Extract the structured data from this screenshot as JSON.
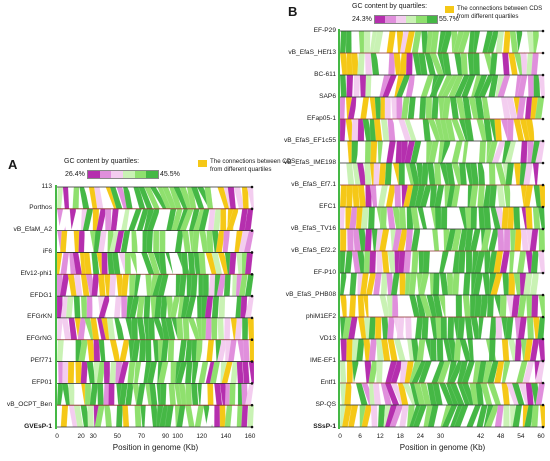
{
  "panels": [
    {
      "letter": "A",
      "legend": {
        "gc_title": "GC content by quartiles:",
        "gc_low": "26.4%",
        "gc_high": "45.5%",
        "connections": "The connections between CDS from different quartiles"
      },
      "genomes": [
        "113",
        "Porthos",
        "vB_EfaM_A2",
        "iF6",
        "Efv12-phi1",
        "EFDG1",
        "EFGrKN",
        "EFGrNG",
        "PEf771",
        "EFP01",
        "vB_OCPT_Ben",
        "GVEsP-1"
      ],
      "ticks": [
        "0",
        "20",
        "30",
        "50",
        "70",
        "90",
        "100",
        "120",
        "140",
        "160"
      ],
      "tick_values": [
        0,
        20,
        30,
        50,
        70,
        90,
        100,
        120,
        140,
        160
      ],
      "axis_title": "Position in genome (Kb)"
    },
    {
      "letter": "B",
      "legend": {
        "gc_title": "GC content by quartiles:",
        "gc_low": "24.3%",
        "gc_high": "55.7%",
        "connections": "The connections between CDS from different quartiles"
      },
      "genomes": [
        "EF-P29",
        "vB_EfaS_HEf13",
        "BC-611",
        "SAP6",
        "EFap05-1",
        "vB_EfaS_EF1c55",
        "vB_EfaS_IME198",
        "vB_EfaS_Ef7.1",
        "EFC1",
        "vB_EfaS_TV16",
        "vB_EfaS_Ef2.2",
        "EF-P10",
        "vB_EfaS_PHB08",
        "phiM1EF2",
        "VD13",
        "IME-EF1",
        "Entf1",
        "SP-QS",
        "SSsP-1"
      ],
      "ticks": [
        "0",
        "6",
        "12",
        "18",
        "24",
        "30",
        "42",
        "48",
        "54",
        "60"
      ],
      "tick_values": [
        0,
        6,
        12,
        18,
        24,
        30,
        42,
        48,
        54,
        60
      ],
      "axis_title": "Position in genome (Kb)"
    }
  ],
  "colors": {
    "gc_quartiles": [
      "#b52fae",
      "#e08fdc",
      "#f3cdef",
      "#c9f2b4",
      "#8fe06e",
      "#45b845"
    ],
    "connection": "#f5c817",
    "row_line": "#2a2a2a",
    "row_line_accent": "#8a2c2c"
  }
}
